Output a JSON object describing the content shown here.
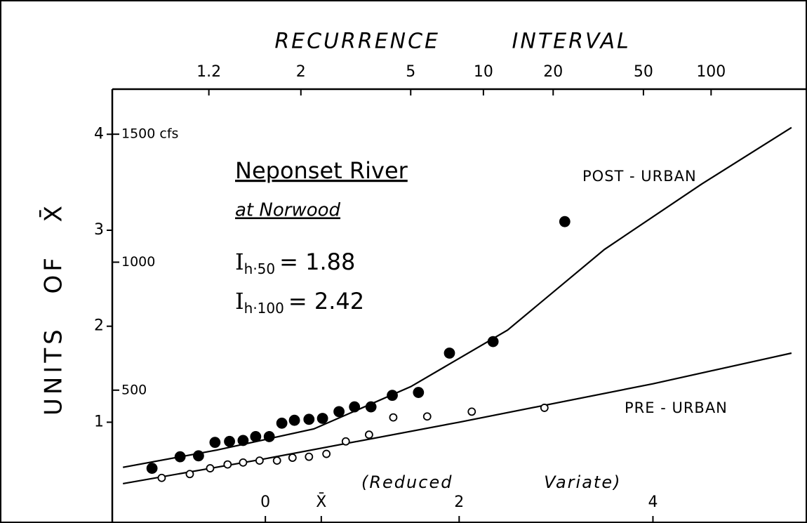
{
  "chart_data": {
    "type": "scatter",
    "title": "RECURRENCE INTERVAL",
    "xlabel": "(Reduced Variate)",
    "ylabel": "UNITS OF X̄",
    "xlim": [
      -1.58,
      5.59
    ],
    "ylim": [
      -0.05,
      4.47
    ],
    "xticks": [
      0,
      {
        "value": 0.577,
        "label": "X̄"
      },
      2,
      4
    ],
    "yticks": [
      1,
      2,
      3,
      4
    ],
    "y2lim": [
      -19,
      1676
    ],
    "y2ticks": [
      {
        "value": 1500,
        "label": "1500 cfs"
      },
      1000,
      500
    ],
    "x2scale": "gumbel",
    "x2ticks": [
      1.2,
      2,
      5,
      10,
      20,
      50,
      100
    ],
    "annotations": {
      "station": "Neponset River",
      "location": "at Norwood",
      "indices": [
        {
          "symbol": "I",
          "subscript": "h·50",
          "text": "= 1.88"
        },
        {
          "symbol": "I",
          "subscript": "h·100",
          "text": "= 2.42"
        }
      ]
    },
    "series": [
      {
        "name": "POST - URBAN",
        "color": "#000000",
        "marker": "filled",
        "x": [
          -1.17,
          -0.88,
          -0.69,
          -0.52,
          -0.37,
          -0.23,
          -0.1,
          0.04,
          0.17,
          0.3,
          0.45,
          0.59,
          0.76,
          0.92,
          1.09,
          1.31,
          1.58,
          1.9,
          2.35,
          3.09
        ],
        "values": [
          0.52,
          0.64,
          0.65,
          0.79,
          0.8,
          0.81,
          0.85,
          0.85,
          0.99,
          1.02,
          1.03,
          1.04,
          1.11,
          1.16,
          1.16,
          1.28,
          1.31,
          1.72,
          1.84,
          3.09
        ],
        "curve": {
          "x": [
            -1.47,
            -0.5,
            0.5,
            1.5,
            2.5,
            3.5,
            4.5,
            5.43
          ],
          "values": [
            0.53,
            0.71,
            0.93,
            1.37,
            1.96,
            2.8,
            3.48,
            4.07
          ]
        }
      },
      {
        "name": "PRE - URBAN",
        "color": "#000000",
        "marker": "open",
        "x": [
          -1.07,
          -0.78,
          -0.57,
          -0.39,
          -0.23,
          -0.06,
          0.12,
          0.28,
          0.45,
          0.63,
          0.83,
          1.07,
          1.32,
          1.67,
          2.13,
          2.88
        ],
        "values": [
          0.42,
          0.46,
          0.52,
          0.56,
          0.58,
          0.6,
          0.6,
          0.63,
          0.64,
          0.67,
          0.8,
          0.87,
          1.05,
          1.06,
          1.11,
          1.15
        ],
        "curve": {
          "x": [
            -1.47,
            0,
            2,
            4,
            5.43
          ],
          "values": [
            0.36,
            0.62,
            1.0,
            1.4,
            1.72
          ]
        }
      }
    ]
  }
}
